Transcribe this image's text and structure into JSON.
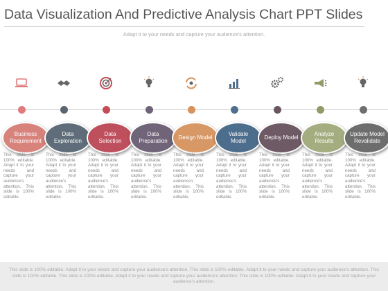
{
  "slide": {
    "title": "Data Visualization And Predictive Analysis Chart PPT Slides",
    "subtitle": "Adapt it to your needs and capture your audience's attention."
  },
  "steps": [
    {
      "label": "Business Requirement",
      "icon": "laptop-icon",
      "dot_color": "#e07b7b",
      "oval_color": "#d8827c",
      "description": "This slide is 100% editable. Adapt it to your needs and capture your audience's attention. This slide is 100% editable."
    },
    {
      "label": "Data Exploration",
      "icon": "handshake-icon",
      "dot_color": "#5b6570",
      "oval_color": "#5e6d79",
      "description": "This slide is 100% editable. Adapt it to your needs and capture your audience's attention. This slide is 100% editable."
    },
    {
      "label": "Data Selection",
      "icon": "target-icon",
      "dot_color": "#c44b58",
      "oval_color": "#be4f5c",
      "description": "This slide is 100% editable. Adapt it to your needs and capture your audience's attention. This slide is 100% editable."
    },
    {
      "label": "Data Preparation",
      "icon": "lightbulb-icon",
      "dot_color": "#6e6378",
      "oval_color": "#706478",
      "description": "This slide is 100% editable. Adapt it to your needs and capture your audience's attention. This slide is 100% editable."
    },
    {
      "label": "Design Model",
      "icon": "refresh-icon",
      "dot_color": "#d8925a",
      "oval_color": "#d79866",
      "description": "This slide is 100% editable. Adapt it to your needs and capture your audience's attention. This slide is 100% editable."
    },
    {
      "label": "Validate Model",
      "icon": "bar-chart-icon",
      "dot_color": "#4f6f8f",
      "oval_color": "#4d6d8d",
      "description": "This slide is 100% editable. Adapt it to your needs and capture your audience's attention. This slide is 100% editable."
    },
    {
      "label": "Deploy Model",
      "icon": "gears-icon",
      "dot_color": "#6a5660",
      "oval_color": "#6d5a64",
      "description": "This slide is 100% editable. Adapt it to your needs and capture your audience's attention. This slide is 100% editable."
    },
    {
      "label": "Analyze Results",
      "icon": "megaphone-icon",
      "dot_color": "#8f9c68",
      "oval_color": "#a4ad7f",
      "description": "This slide is 100% editable. Adapt it to your needs and capture your audience's attention. This slide is 100% editable."
    },
    {
      "label": "Update Model Revalidate",
      "icon": "lightbulb-icon",
      "dot_color": "#6f6f6f",
      "oval_color": "#6d6d6d",
      "description": "This slide is 100% editable. Adapt it to your needs and capture your audience's attention. This slide is 100% editable."
    }
  ],
  "colors": {
    "icon_color": "#666666",
    "laptop_accent": "#e07b7b",
    "target_accent": "#c44b58",
    "refresh_accent": "#d8925a",
    "chart_accent": "#4f6f8f",
    "megaphone_accent": "#8f9c68",
    "bulb_accent": "#d8925a"
  },
  "footer": {
    "text": "This slide is 100% editable. Adapt it to your needs and capture your audience's attention. This slide is 100% editable. Adapt it to your needs and capture your audience's attention. This slide is 100% editable. This slide is 100% editable. Adapt it to your needs and capture your audience's attention. This slide is 100% editable. Adapt it to your needs and capture your audience's attention."
  }
}
